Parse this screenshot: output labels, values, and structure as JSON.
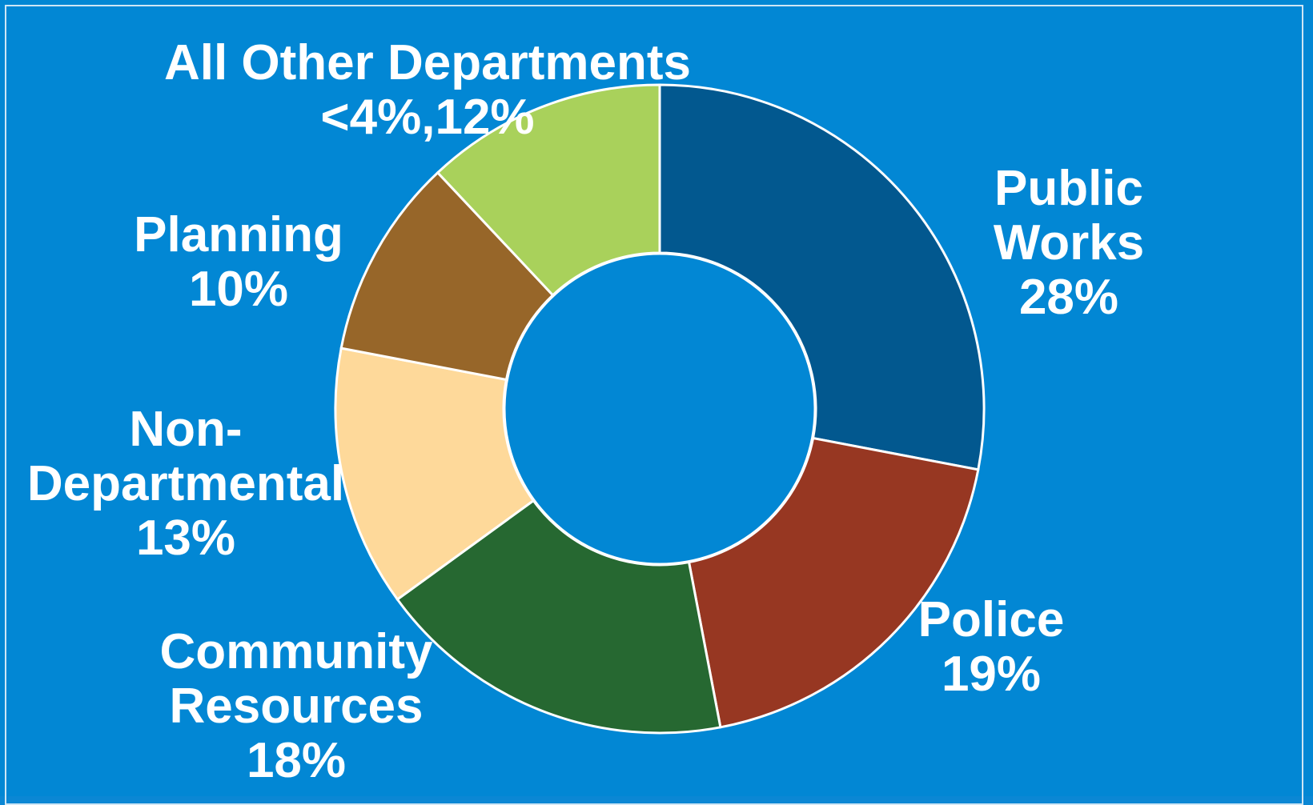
{
  "chart_data": {
    "type": "donut",
    "title": "",
    "slices": [
      {
        "name": "Public Works",
        "value": 28,
        "label_lines": [
          "Public",
          "Works",
          "28%"
        ],
        "color": "#02588f"
      },
      {
        "name": "Police",
        "value": 19,
        "label_lines": [
          "Police",
          "19%"
        ],
        "color": "#973722"
      },
      {
        "name": "Community Resources",
        "value": 18,
        "label_lines": [
          "Community",
          "Resources",
          "18%"
        ],
        "color": "#266831"
      },
      {
        "name": "Non-Departmental",
        "value": 13,
        "label_lines": [
          "Non-",
          "Departmental",
          "13%"
        ],
        "color": "#fed99a"
      },
      {
        "name": "Planning",
        "value": 10,
        "label_lines": [
          "Planning",
          "10%"
        ],
        "color": "#976629"
      },
      {
        "name": "All Other Departments <4%",
        "value": 12,
        "label_lines": [
          "All Other Departments",
          "<4%,12%"
        ],
        "color": "#a9d15b"
      }
    ],
    "background_color": "#0287d4",
    "slice_border_color": "#ffffff",
    "legend": "none"
  }
}
